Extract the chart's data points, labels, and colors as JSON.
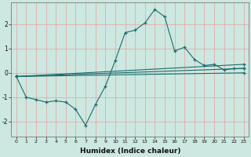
{
  "xlabel": "Humidex (Indice chaleur)",
  "ylabel": "",
  "bg_color": "#cce8e0",
  "line_color": "#1a6b6b",
  "grid_color_h": "#e8a0a0",
  "grid_color_v": "#e8a0a0",
  "xlim": [
    -0.5,
    23.5
  ],
  "ylim": [
    -2.6,
    2.9
  ],
  "x_ticks": [
    0,
    1,
    2,
    3,
    4,
    5,
    6,
    7,
    8,
    9,
    10,
    11,
    12,
    13,
    14,
    15,
    16,
    17,
    18,
    19,
    20,
    21,
    22,
    23
  ],
  "y_ticks": [
    -2,
    -1,
    0,
    1,
    2
  ],
  "series": [
    {
      "x": [
        0,
        1,
        2,
        3,
        4,
        5,
        6,
        7,
        8,
        9,
        10,
        11,
        12,
        13,
        14,
        15,
        16,
        17,
        18,
        19,
        20,
        21,
        22,
        23
      ],
      "y": [
        -0.15,
        -1.0,
        -1.1,
        -1.2,
        -1.15,
        -1.2,
        -1.5,
        -2.15,
        -1.3,
        -0.55,
        0.5,
        1.65,
        1.75,
        2.05,
        2.6,
        2.3,
        0.9,
        1.05,
        0.55,
        0.3,
        0.35,
        0.12,
        0.18,
        0.18
      ]
    },
    {
      "x": [
        0,
        23
      ],
      "y": [
        -0.15,
        0.35
      ]
    },
    {
      "x": [
        0,
        23
      ],
      "y": [
        -0.15,
        0.18
      ]
    },
    {
      "x": [
        0,
        23
      ],
      "y": [
        -0.15,
        0.0
      ]
    }
  ]
}
